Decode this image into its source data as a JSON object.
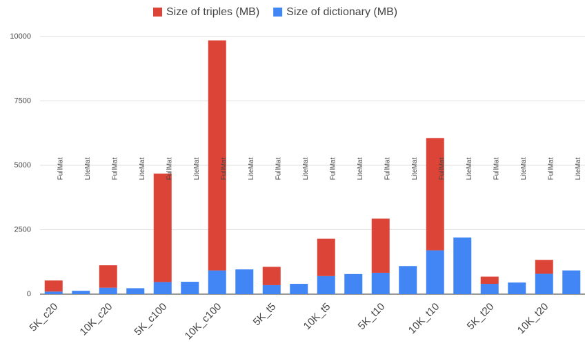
{
  "chart_data": {
    "type": "stacked_bar",
    "categories": [
      "5K_c20",
      null,
      "10K_c20",
      null,
      "5K_c100",
      null,
      "10K_c100",
      null,
      "5K_t5",
      null,
      "10K_t5",
      null,
      "5K_t10",
      null,
      "10K_t10",
      null,
      "5K_t20",
      null,
      "10K_t20",
      null
    ],
    "annotations": [
      "FullMat",
      "LiteMat",
      "FullMat",
      "LiteMat",
      "FullMat",
      "LiteMat",
      "FullMat",
      "LiteMat",
      "FullMat",
      "LiteMat",
      "FullMat",
      "LiteMat",
      "FullMat",
      "LiteMat",
      "FullMat",
      "LiteMat",
      "FullMat",
      "LiteMat",
      "FullMat",
      "LiteMat"
    ],
    "series": [
      {
        "name": "Size of triples (MB)",
        "color": "#db4437",
        "values": [
          430,
          0,
          870,
          0,
          4210,
          0,
          8930,
          0,
          710,
          0,
          1450,
          0,
          2100,
          0,
          4360,
          0,
          280,
          0,
          540,
          0
        ]
      },
      {
        "name": "Size of dictionary (MB)",
        "color": "#4285f4",
        "values": [
          100,
          130,
          250,
          230,
          470,
          480,
          920,
          960,
          350,
          400,
          700,
          780,
          830,
          1090,
          1700,
          2200,
          400,
          450,
          790,
          920
        ]
      }
    ],
    "ylim": [
      0,
      10000
    ],
    "yticks": [
      0,
      2500,
      5000,
      7500,
      10000
    ],
    "grid": true,
    "legend": "top"
  }
}
